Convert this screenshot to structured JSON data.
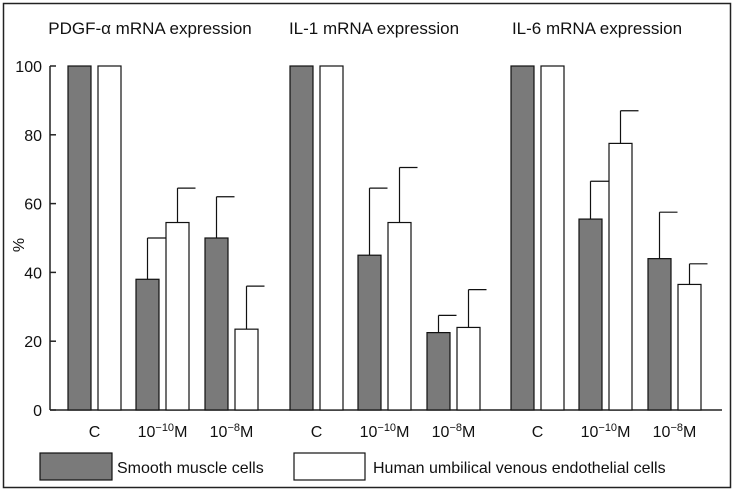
{
  "chart_data": {
    "type": "bar",
    "ylabel": "%",
    "ylim": [
      0,
      100
    ],
    "yticks": [
      "0",
      "20",
      "40",
      "60",
      "80",
      "100"
    ],
    "category_labels": [
      {
        "base": "C",
        "sup": "",
        "unit": ""
      },
      {
        "base": "10",
        "sup": "−10",
        "unit": "M"
      },
      {
        "base": "10",
        "sup": "−8",
        "unit": "M"
      }
    ],
    "panels": [
      {
        "title": "PDGF-α mRNA expression",
        "series": [
          {
            "name": "Smooth muscle cells",
            "values": [
              100,
              38,
              50
            ],
            "errors": [
              0,
              12,
              12
            ]
          },
          {
            "name": "Human umbilical venous endothelial cells",
            "values": [
              100,
              54.5,
              23.5
            ],
            "errors": [
              0,
              10,
              12.5
            ]
          }
        ]
      },
      {
        "title": "IL-1 mRNA expression",
        "series": [
          {
            "name": "Smooth muscle cells",
            "values": [
              100,
              45,
              22.5
            ],
            "errors": [
              0,
              19.5,
              5
            ]
          },
          {
            "name": "Human umbilical venous endothelial cells",
            "values": [
              100,
              54.5,
              24
            ],
            "errors": [
              0,
              16,
              11
            ]
          }
        ]
      },
      {
        "title": "IL-6 mRNA expression",
        "series": [
          {
            "name": "Smooth muscle cells",
            "values": [
              100,
              55.5,
              44
            ],
            "errors": [
              0,
              11,
              13.5
            ]
          },
          {
            "name": "Human umbilical venous endothelial cells",
            "values": [
              100,
              77.5,
              36.5
            ],
            "errors": [
              0,
              9.5,
              6
            ]
          }
        ]
      }
    ],
    "legend": [
      {
        "label": "Smooth muscle cells",
        "color": "#7a7a7a"
      },
      {
        "label": "Human umbilical venous endothelial cells",
        "color": "#ffffff"
      }
    ]
  }
}
